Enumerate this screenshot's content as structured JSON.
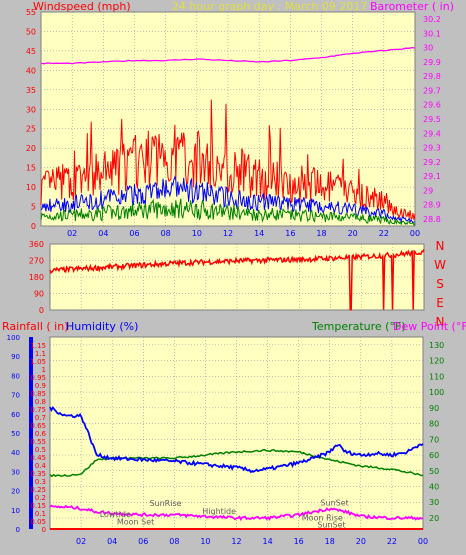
{
  "header": {
    "title": "24 hour graph day : March 09 2017",
    "left_label": "Windspeed (mph)",
    "right_label": "Barometer ( in)"
  },
  "colors": {
    "plot_bg": "#ffffc0",
    "frame_bg": "#c0c0c0",
    "wind_gust": "#ff0000",
    "wind_avg": "#0000ff",
    "wind_low": "#008000",
    "barometer": "#ff00ff",
    "direction": "#ff0000",
    "rainfall": "#ff0000",
    "humidity": "#0000ff",
    "temperature": "#008000",
    "dew_point": "#ff00ff",
    "title": "#e0e040",
    "grid": "#8080a0"
  },
  "chart_data": [
    {
      "type": "line",
      "x_ticks": [
        "02",
        "04",
        "06",
        "08",
        "10",
        "12",
        "14",
        "16",
        "18",
        "20",
        "22",
        "00"
      ],
      "yleft_ticks": [
        "0",
        "5",
        "10",
        "15",
        "20",
        "25",
        "30",
        "35",
        "40",
        "45",
        "50",
        "55"
      ],
      "yright_ticks": [
        "28.8",
        "28.9",
        "29",
        "29.1",
        "29.2",
        "29.3",
        "29.4",
        "29.5",
        "29.6",
        "29.7",
        "29.8",
        "29.9",
        "30",
        "30.1",
        "30.2"
      ],
      "ylim_left": [
        0,
        55
      ],
      "ylim_right": [
        28.75,
        30.25
      ],
      "xlim": [
        0,
        24
      ],
      "series": [
        {
          "name": "Windspeed",
          "axis": "left",
          "x": [
            0,
            1,
            2,
            3,
            4,
            5,
            6,
            7,
            8,
            9,
            10,
            11,
            12,
            13,
            14,
            15,
            16,
            17,
            18,
            19,
            20,
            21,
            22,
            23,
            24
          ],
          "values": [
            8,
            9,
            9,
            10,
            11,
            12,
            13,
            14,
            15,
            15,
            14,
            13,
            12,
            11,
            10,
            10,
            9,
            9,
            8,
            8,
            7,
            6,
            5,
            3,
            2
          ]
        },
        {
          "name": "Barometer",
          "axis": "right",
          "x": [
            0,
            2,
            4,
            6,
            8,
            10,
            12,
            14,
            16,
            18,
            20,
            22,
            24
          ],
          "values": [
            29.89,
            29.89,
            29.9,
            29.91,
            29.91,
            29.92,
            29.91,
            29.9,
            29.91,
            29.93,
            29.96,
            29.98,
            30.0
          ]
        }
      ]
    },
    {
      "type": "line",
      "right_labels": [
        "N",
        "W",
        "S",
        "E",
        "N"
      ],
      "y_ticks": [
        "0",
        "90",
        "180",
        "270",
        "360"
      ],
      "ylim": [
        0,
        360
      ],
      "xlim": [
        0,
        24
      ],
      "series": [
        {
          "name": "Wind Direction",
          "x": [
            0,
            2,
            4,
            6,
            8,
            10,
            12,
            14,
            16,
            18,
            20,
            22,
            24
          ],
          "values": [
            215,
            225,
            235,
            245,
            255,
            262,
            268,
            272,
            275,
            282,
            290,
            300,
            318
          ]
        }
      ]
    },
    {
      "type": "line",
      "labels": {
        "rainfall": "Rainfall ( in)",
        "humidity": "Humidity (%)",
        "temperature": "Temperature (°F)",
        "dew_point": "Dew Point (°F)"
      },
      "x_ticks": [
        "02",
        "04",
        "06",
        "08",
        "10",
        "12",
        "14",
        "16",
        "18",
        "20",
        "22",
        "00"
      ],
      "y_humidity_ticks": [
        "0",
        "10",
        "20",
        "30",
        "40",
        "50",
        "60",
        "70",
        "80",
        "90",
        "100"
      ],
      "y_rain_ticks": [
        "0",
        "0.05",
        "0.1",
        "0.15",
        "0.2",
        "0.25",
        "0.3",
        "0.35",
        "0.4",
        "0.45",
        "0.5",
        "0.55",
        "0.6",
        "0.65",
        "0.7",
        "0.75",
        "0.8",
        "0.85",
        "0.9",
        "0.95",
        "1",
        "1.05",
        "1.1",
        "1.15"
      ],
      "y_temp_ticks": [
        "20",
        "30",
        "40",
        "50",
        "60",
        "70",
        "80",
        "90",
        "100",
        "110",
        "120",
        "130"
      ],
      "ylim_temp": [
        13,
        135
      ],
      "ylim_rain": [
        0,
        1.2
      ],
      "xlim": [
        0,
        24
      ],
      "series": [
        {
          "name": "Rainfall",
          "axis": "rain",
          "x": [
            0,
            24
          ],
          "values": [
            0,
            0
          ]
        },
        {
          "name": "Humidity",
          "axis": "temp",
          "x": [
            0,
            1,
            2,
            2.5,
            3,
            4,
            6,
            8,
            10,
            12,
            13,
            14,
            15,
            16,
            17,
            18,
            18.5,
            19,
            20,
            21,
            22,
            23,
            24
          ],
          "values": [
            90,
            85,
            85,
            73,
            60,
            58,
            57,
            56,
            54,
            52,
            50,
            51,
            53,
            55,
            58,
            62,
            67,
            62,
            60,
            61,
            60,
            62,
            68
          ]
        },
        {
          "name": "Temperature",
          "axis": "temp",
          "x": [
            0,
            1,
            2,
            3,
            4,
            6,
            8,
            10,
            12,
            14,
            16,
            18,
            20,
            22,
            24
          ],
          "values": [
            47,
            47,
            48,
            57,
            58,
            58,
            58,
            60,
            62,
            63,
            62,
            57,
            53,
            51,
            47
          ]
        },
        {
          "name": "Dew Point",
          "axis": "temp",
          "x": [
            0,
            1,
            2,
            3,
            4,
            6,
            8,
            10,
            12,
            14,
            16,
            17,
            18,
            19,
            20,
            22,
            23,
            24
          ],
          "values": [
            27,
            27,
            26,
            24,
            23,
            22,
            22,
            21,
            20,
            20,
            22,
            24,
            26,
            24,
            21,
            20,
            20,
            20
          ]
        }
      ],
      "annotations": [
        {
          "text": "Lowtide",
          "x": 3.2,
          "y": 20.5
        },
        {
          "text": "Moon Set",
          "x": 4.3,
          "y": 16
        },
        {
          "text": "SunRise",
          "x": 6.4,
          "y": 27.5
        },
        {
          "text": "Hightide",
          "x": 9.8,
          "y": 22.5
        },
        {
          "text": "Moon Rise",
          "x": 16.2,
          "y": 18.5
        },
        {
          "text": "SunSet",
          "x": 17.4,
          "y": 28
        },
        {
          "text": "SunSet",
          "x": 17.2,
          "y": 14
        }
      ]
    }
  ]
}
